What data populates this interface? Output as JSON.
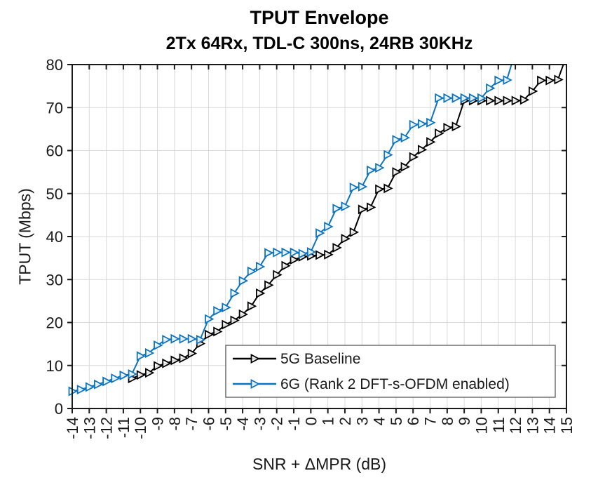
{
  "figure": {
    "title": "TPUT Envelope",
    "subtitle": "2Tx 64Rx, TDL-C 300ns, 24RB 30KHz"
  },
  "chart_data": {
    "type": "line",
    "title": "TPUT Envelope",
    "subtitle": "2Tx 64Rx, TDL-C 300ns, 24RB 30KHz",
    "xlabel": "SNR + ΔMPR (dB)",
    "ylabel": "TPUT (Mbps)",
    "xlim": [
      -14,
      15
    ],
    "ylim": [
      0,
      80
    ],
    "grid": true,
    "frame_color": "#1a1a1a",
    "grid_color": "#d9d9d9",
    "x_ticks": [
      -14,
      -13,
      -12,
      -11,
      -10,
      -9,
      -8,
      -7,
      -6,
      -5,
      -4,
      -3,
      -2,
      -1,
      0,
      1,
      2,
      3,
      4,
      5,
      6,
      7,
      8,
      9,
      10,
      11,
      12,
      13,
      14,
      15
    ],
    "x_tick_labels": [
      "-14",
      "-13",
      "-12",
      "-11",
      "-10",
      "-9",
      "-8",
      "-7",
      "-6",
      "-5",
      "-4",
      "-3",
      "-2",
      "-1",
      "0",
      "1",
      "2",
      "3",
      "4",
      "5",
      "6",
      "7",
      "8",
      "9",
      "10",
      "11",
      "12",
      "13",
      "14",
      "15"
    ],
    "y_ticks": [
      0,
      10,
      20,
      30,
      40,
      50,
      60,
      70,
      80
    ],
    "y_tick_labels": [
      "0",
      "10",
      "20",
      "30",
      "40",
      "50",
      "60",
      "70",
      "80"
    ],
    "legend_position": "inside-lower-middle",
    "series": [
      {
        "name": "5G Baseline",
        "color": "#000000",
        "marker": "right-triangle",
        "x": [
          -10.5,
          -10,
          -9.5,
          -9,
          -8.5,
          -8,
          -7.5,
          -7,
          -6.5,
          -6,
          -5.5,
          -5,
          -4.5,
          -4,
          -3.5,
          -3,
          -2.5,
          -2,
          -1.5,
          -1,
          -0.5,
          0,
          0.5,
          1,
          1.5,
          2,
          2.5,
          3,
          3.5,
          4,
          4.5,
          5,
          5.5,
          6,
          6.5,
          7,
          7.5,
          8,
          8.5,
          9,
          9.5,
          10,
          10.5,
          11,
          11.5,
          12,
          12.5,
          13,
          13.5,
          14,
          14.5,
          15
        ],
        "y": [
          7,
          7.8,
          8.3,
          9.9,
          10.5,
          11.2,
          11.7,
          12.8,
          15.1,
          17.2,
          17.9,
          19.5,
          20.5,
          21.9,
          23.8,
          26.8,
          28.7,
          31.1,
          33.2,
          34.6,
          35.3,
          35.5,
          35.7,
          35.8,
          37.4,
          39.5,
          41,
          46.3,
          46.8,
          51,
          51.2,
          55,
          56.2,
          58.5,
          60.2,
          62,
          64,
          65.3,
          65.6,
          71.6,
          71.6,
          71.6,
          71.6,
          71.6,
          71.6,
          71.6,
          71.8,
          73.8,
          76.3,
          76.3,
          76.5,
          82
        ]
      },
      {
        "name": "6G (Rank 2 DFT-s-OFDM enabled)",
        "color": "#0b74c0",
        "marker": "right-triangle",
        "x": [
          -14,
          -13.5,
          -13,
          -12.5,
          -12,
          -11.5,
          -11,
          -10.5,
          -10,
          -9.5,
          -9,
          -8.5,
          -8,
          -7.5,
          -7,
          -6.5,
          -6,
          -5.5,
          -5,
          -4.5,
          -4,
          -3.5,
          -3,
          -2.5,
          -2,
          -1.5,
          -1,
          -0.5,
          0,
          0.5,
          1,
          1.5,
          2,
          2.5,
          3,
          3.5,
          4,
          4.5,
          5,
          5.5,
          6,
          6.5,
          7,
          7.5,
          8,
          8.5,
          9,
          9.5,
          10,
          10.5,
          11,
          11.5,
          12
        ],
        "y": [
          4,
          4.4,
          5,
          5.6,
          6.3,
          7,
          7.7,
          8,
          12.2,
          12.9,
          14.7,
          16,
          16.2,
          16.2,
          16.2,
          16,
          20.8,
          22.7,
          23.5,
          26.8,
          29.7,
          31.9,
          33,
          36.2,
          36.3,
          36.3,
          36.3,
          36,
          36.4,
          40.8,
          42.3,
          46.5,
          47,
          51.4,
          51.6,
          55.4,
          56,
          59,
          62.5,
          63,
          66,
          66.2,
          66.5,
          72.2,
          72.2,
          72.2,
          72.2,
          72.2,
          72.2,
          74.5,
          76.3,
          76.4,
          83
        ]
      }
    ]
  }
}
